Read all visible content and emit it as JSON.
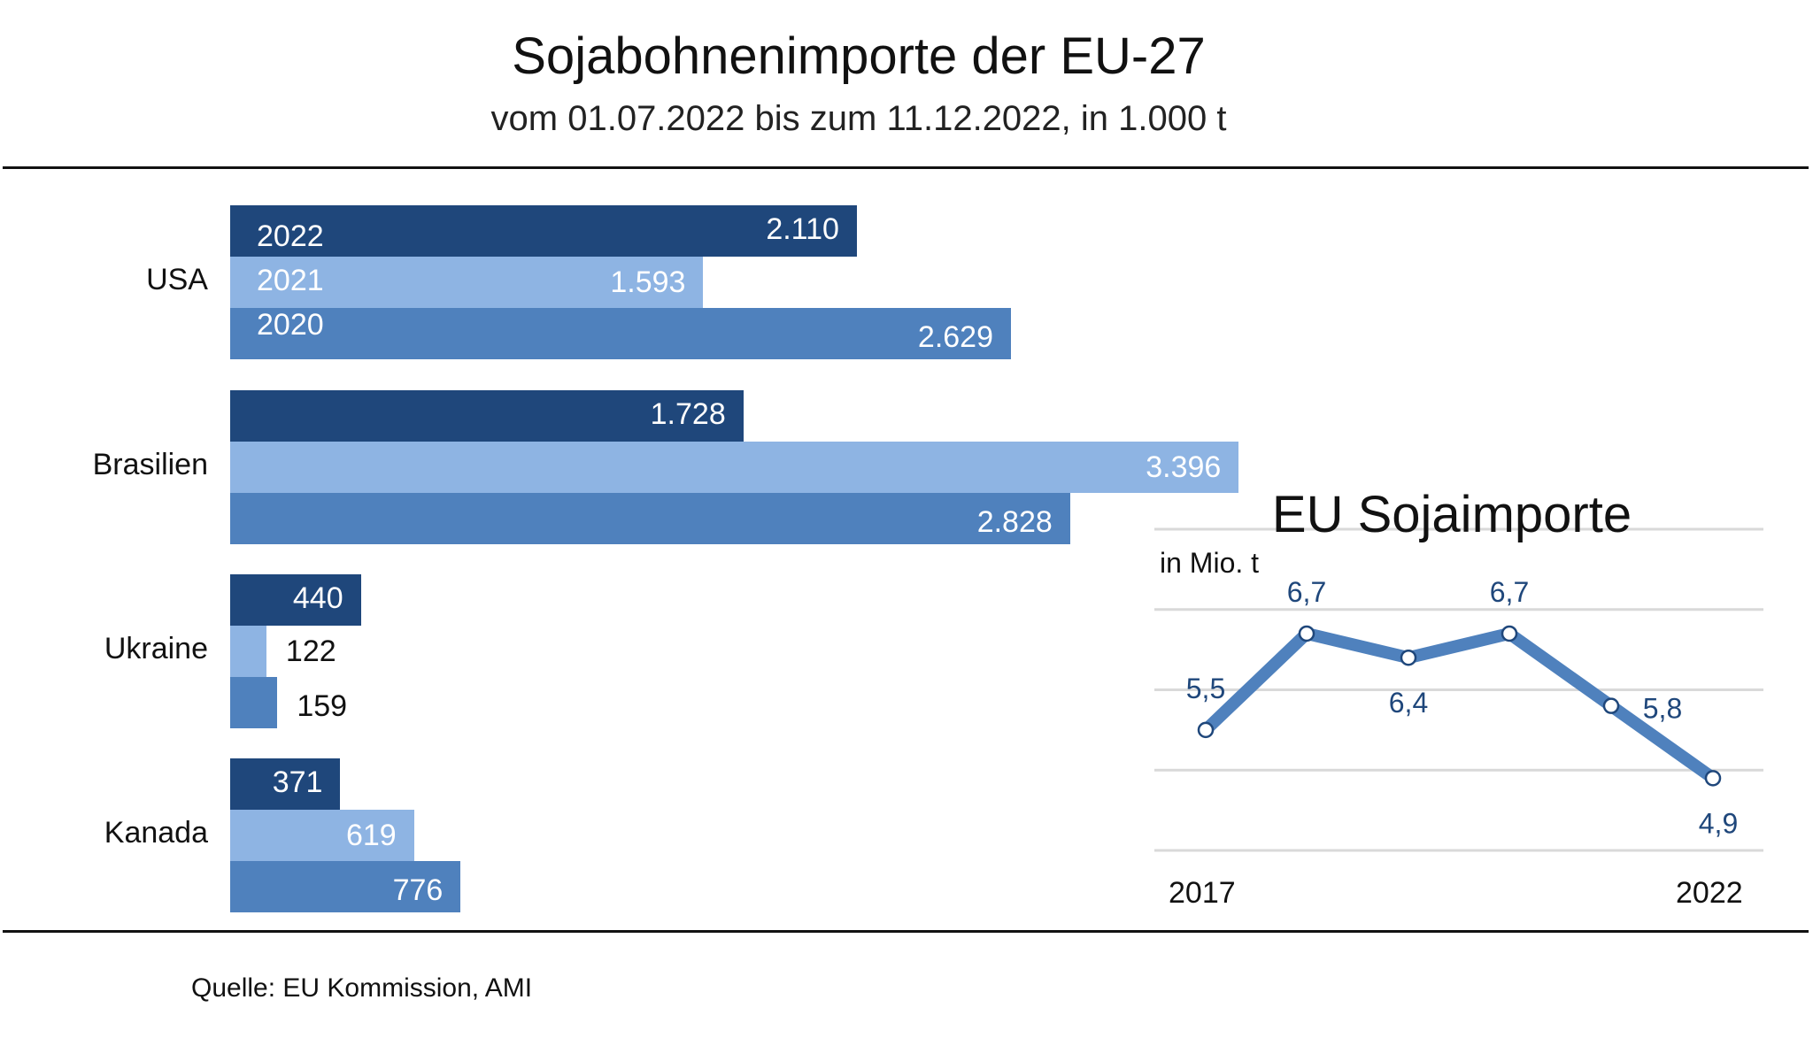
{
  "header": {
    "title": "Sojabohnenimporte der EU-27",
    "subtitle": "vom 01.07.2022 bis zum 11.12.2022, in 1.000 t"
  },
  "source": "Quelle:  EU Kommission, AMI",
  "colors": {
    "y2022": "#1f477b",
    "y2021": "#8eb4e3",
    "y2020": "#4f81bd",
    "line": "#4f81bd",
    "label_blue": "#1f477b",
    "grid": "#d9d9d9"
  },
  "chart_data": [
    {
      "type": "bar",
      "orientation": "horizontal",
      "title": "Sojabohnenimporte der EU-27",
      "subtitle": "vom 01.07.2022 bis zum 11.12.2022, in 1.000 t",
      "categories": [
        "USA",
        "Brasilien",
        "Ukraine",
        "Kanada"
      ],
      "series": [
        {
          "name": "2022",
          "values": [
            2110,
            1728,
            440,
            371
          ],
          "labels": [
            "2.110",
            "1.728",
            "440",
            "371"
          ]
        },
        {
          "name": "2021",
          "values": [
            1593,
            3396,
            122,
            619
          ],
          "labels": [
            "1.593",
            "3.396",
            "122",
            "619"
          ]
        },
        {
          "name": "2020",
          "values": [
            2629,
            2828,
            159,
            776
          ],
          "labels": [
            "2.629",
            "2.828",
            "159",
            "776"
          ]
        }
      ],
      "legend": "inline-in-first-group",
      "grid": false
    },
    {
      "type": "line",
      "title": "EU Sojaimporte",
      "ylabel": "in Mio. t",
      "x": [
        2017,
        2018,
        2019,
        2020,
        2021,
        2022
      ],
      "x_tick_labels": [
        "2017",
        "2022"
      ],
      "values": [
        5.5,
        6.7,
        6.4,
        6.7,
        5.8,
        4.9
      ],
      "labels": [
        "5,5",
        "6,7",
        "6,4",
        "6,7",
        "5,8",
        "4,9"
      ],
      "ylim": [
        4.0,
        8.0
      ],
      "grid": true
    }
  ]
}
